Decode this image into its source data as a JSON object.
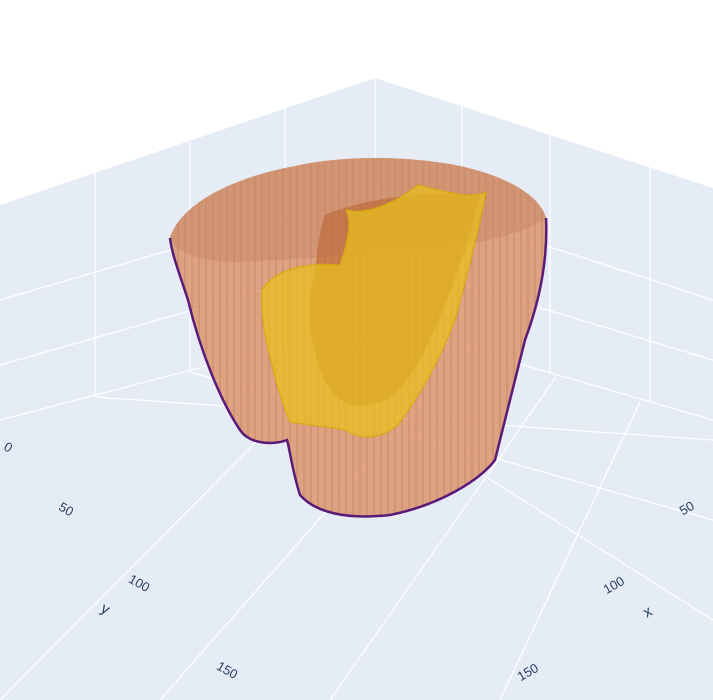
{
  "chart_data": {
    "type": "isosurface",
    "title": "",
    "axes": {
      "x": {
        "title": "x",
        "tick_labels": [
          "50",
          "100",
          "150"
        ]
      },
      "y": {
        "title": "y",
        "tick_labels": [
          "0",
          "50",
          "100",
          "150"
        ]
      },
      "z": {
        "title": "",
        "tick_labels": []
      }
    },
    "background_color": "#e5ecf6",
    "grid": true,
    "surfaces": [
      {
        "name": "",
        "color": "#d9895a",
        "opacity": 0.75
      },
      {
        "name": "",
        "color": "#e9c21a",
        "opacity": 0.7
      }
    ],
    "edge_color": "#5a1a78"
  }
}
